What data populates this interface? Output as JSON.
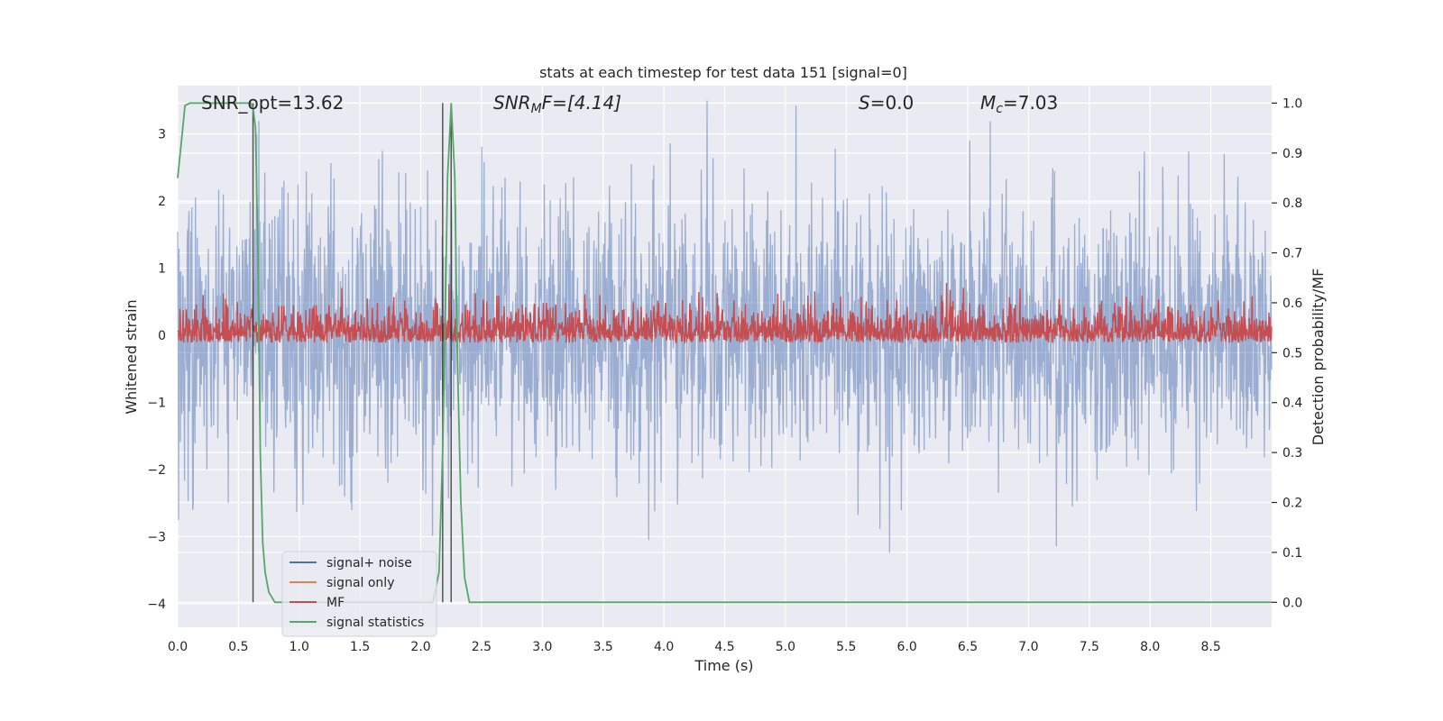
{
  "chart_data": {
    "type": "line",
    "title": "stats at each timestep for test data 151 [signal=0]",
    "xlabel": "Time (s)",
    "ylabel_left": "Whitened strain",
    "ylabel_right": "Detection probability/MF",
    "xlim": [
      0.0,
      9.0
    ],
    "ylim_left": [
      -4.35,
      3.72
    ],
    "ylim_right": [
      -0.05,
      1.035
    ],
    "xticks": [
      0.0,
      0.5,
      1.0,
      1.5,
      2.0,
      2.5,
      3.0,
      3.5,
      4.0,
      4.5,
      5.0,
      5.5,
      6.0,
      6.5,
      7.0,
      7.5,
      8.0,
      8.5
    ],
    "xtick_labels": [
      "0.0",
      "0.5",
      "1.0",
      "1.5",
      "2.0",
      "2.5",
      "3.0",
      "3.5",
      "4.0",
      "4.5",
      "5.0",
      "5.5",
      "6.0",
      "6.5",
      "7.0",
      "7.5",
      "8.0",
      "8.5"
    ],
    "yticks_left": [
      3,
      2,
      1,
      0,
      -1,
      -2,
      -3,
      -4
    ],
    "ytick_labels_left": [
      "3",
      "2",
      "1",
      "0",
      "−1",
      "−2",
      "−3",
      "−4"
    ],
    "yticks_right": [
      1.0,
      0.9,
      0.8,
      0.7,
      0.6,
      0.5,
      0.4,
      0.3,
      0.2,
      0.1,
      0.0
    ],
    "ytick_labels_right": [
      "1.0",
      "0.9",
      "0.8",
      "0.7",
      "0.6",
      "0.5",
      "0.4",
      "0.3",
      "0.2",
      "0.1",
      "0.0"
    ],
    "annotations": {
      "snr_opt": "SNR_opt=13.62",
      "snr_mf_prefix": "SNR",
      "snr_mf_sub": "M",
      "snr_mf_suffix": "F=[4.14]",
      "s_label": "S",
      "s_value": "=0.0",
      "mc_label": "M",
      "mc_sub": "c",
      "mc_value": "=7.03"
    },
    "series": [
      {
        "name": "signal+ noise",
        "color": "#4c72b0",
        "axis": "left",
        "description": "whitened noise, ~N(0,1), spanning approx -3.3 to 3.5",
        "n_samples": 2400,
        "std": 1.0
      },
      {
        "name": "signal only",
        "color": "#dd8452",
        "axis": "left",
        "description": "flat zero (no signal injected)",
        "values_constant": 0.0
      },
      {
        "name": "MF",
        "color": "#c44e52",
        "axis": "right",
        "description": "matched filter output, ranges approx 0.50 to 0.66",
        "baseline": 0.52,
        "max": 0.665
      },
      {
        "name": "signal statistics",
        "color": "#55a868",
        "axis": "right",
        "x": [
          0.0,
          0.03,
          0.06,
          0.1,
          0.15,
          0.2,
          0.3,
          0.4,
          0.5,
          0.6,
          0.62,
          0.64,
          0.66,
          0.68,
          0.7,
          0.72,
          0.75,
          0.8,
          0.9,
          1.0,
          1.2,
          1.5,
          1.8,
          2.0,
          2.1,
          2.15,
          2.18,
          2.2,
          2.22,
          2.25,
          2.28,
          2.3,
          2.33,
          2.36,
          2.4,
          2.5,
          3.0,
          5.0,
          7.0,
          9.0
        ],
        "y": [
          0.85,
          0.92,
          0.995,
          1.0,
          1.0,
          1.0,
          1.0,
          1.0,
          1.0,
          1.0,
          0.99,
          0.95,
          0.7,
          0.3,
          0.12,
          0.06,
          0.02,
          0.0,
          0.0,
          0.0,
          0.0,
          0.0,
          0.0,
          0.0,
          0.0,
          0.06,
          0.3,
          0.55,
          0.85,
          1.0,
          0.85,
          0.5,
          0.2,
          0.05,
          0.0,
          0.0,
          0.0,
          0.0,
          0.0,
          0.0
        ]
      }
    ],
    "vertical_lines": {
      "color": "#222222",
      "x": [
        0.62,
        2.18,
        2.25
      ],
      "ylim_right": [
        0.0,
        1.0
      ]
    },
    "legend": {
      "location": "lower-left",
      "entries": [
        {
          "label": "signal+ noise",
          "color": "#4c72b0"
        },
        {
          "label": "signal only",
          "color": "#dd8452"
        },
        {
          "label": "MF",
          "color": "#c44e52"
        },
        {
          "label": "signal statistics",
          "color": "#55a868"
        }
      ]
    },
    "grid": true,
    "background_color": "#eaeaf2"
  }
}
